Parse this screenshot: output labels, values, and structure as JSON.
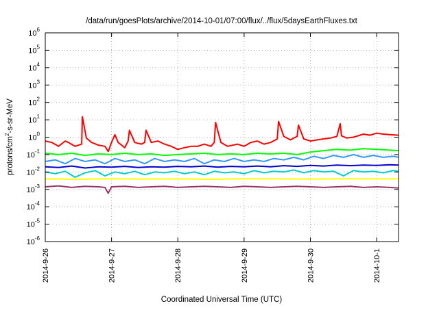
{
  "chart_data": {
    "type": "line",
    "title": "/data/run/goesPlots/archive/2014-10-01/07:00/flux/../flux/5daysEarthFluxes.txt",
    "xlabel": "Coordinated Universal Time (UTC)",
    "ylabel_parts": {
      "prefix": "protons/cm",
      "sup": "2",
      "suffix": "-s-sr-MeV"
    },
    "y_scale": "log",
    "ylim": [
      1e-06,
      1000000
    ],
    "xlim": [
      0,
      5.33
    ],
    "grid": true,
    "legend": "none",
    "x_ticks": [
      {
        "value": 0,
        "label": "2014-9-26"
      },
      {
        "value": 1,
        "label": "2014-9-27"
      },
      {
        "value": 2,
        "label": "2014-9-28"
      },
      {
        "value": 3,
        "label": "2014-9-29"
      },
      {
        "value": 4,
        "label": "2014-9-30"
      },
      {
        "value": 5,
        "label": "2014-10-1"
      }
    ],
    "y_ticks": [
      {
        "value": 1e-06,
        "base": "10",
        "exp": "-6"
      },
      {
        "value": 1e-05,
        "base": "10",
        "exp": "-5"
      },
      {
        "value": 0.0001,
        "base": "10",
        "exp": "-4"
      },
      {
        "value": 0.001,
        "base": "10",
        "exp": "-3"
      },
      {
        "value": 0.01,
        "base": "10",
        "exp": "-2"
      },
      {
        "value": 0.1,
        "base": "10",
        "exp": "-1"
      },
      {
        "value": 1,
        "base": "10",
        "exp": "0"
      },
      {
        "value": 10,
        "base": "10",
        "exp": "1"
      },
      {
        "value": 100,
        "base": "10",
        "exp": "2"
      },
      {
        "value": 1000,
        "base": "10",
        "exp": "3"
      },
      {
        "value": 10000,
        "base": "10",
        "exp": "4"
      },
      {
        "value": 100000,
        "base": "10",
        "exp": "5"
      },
      {
        "value": 1000000,
        "base": "10",
        "exp": "6"
      }
    ],
    "series": [
      {
        "color": "#ff0000",
        "x": [
          0.0,
          0.1,
          0.2,
          0.3,
          0.35,
          0.45,
          0.55,
          0.56,
          0.62,
          0.7,
          0.8,
          0.9,
          0.95,
          1.0,
          1.05,
          1.1,
          1.2,
          1.25,
          1.27,
          1.35,
          1.45,
          1.5,
          1.52,
          1.6,
          1.7,
          1.8,
          1.9,
          2.0,
          2.1,
          2.2,
          2.3,
          2.4,
          2.5,
          2.55,
          2.57,
          2.65,
          2.75,
          2.9,
          3.0,
          3.1,
          3.2,
          3.3,
          3.4,
          3.5,
          3.52,
          3.6,
          3.7,
          3.75,
          3.8,
          3.82,
          3.9,
          4.0,
          4.1,
          4.2,
          4.3,
          4.4,
          4.45,
          4.47,
          4.55,
          4.65,
          4.8,
          4.9,
          5.0,
          5.1,
          5.2,
          5.33
        ],
        "y": [
          0.6,
          0.5,
          0.3,
          0.6,
          0.5,
          0.3,
          0.4,
          15,
          0.9,
          0.5,
          0.35,
          0.3,
          0.15,
          0.5,
          1.4,
          0.5,
          0.25,
          0.6,
          2.5,
          0.5,
          0.4,
          0.5,
          2.5,
          0.5,
          0.6,
          0.4,
          0.3,
          0.2,
          0.25,
          0.3,
          0.3,
          0.4,
          0.3,
          0.5,
          7,
          0.5,
          0.3,
          0.4,
          0.3,
          0.5,
          0.6,
          0.4,
          0.5,
          0.8,
          8,
          1.1,
          0.7,
          0.9,
          1.1,
          5,
          0.8,
          0.6,
          0.7,
          0.8,
          0.9,
          1.1,
          6,
          1.2,
          0.9,
          1.0,
          1.5,
          1.3,
          1.7,
          1.5,
          1.4,
          1.3
        ]
      },
      {
        "color": "#00ff00",
        "x": [
          0.0,
          0.2,
          0.4,
          0.6,
          0.8,
          1.0,
          1.2,
          1.4,
          1.6,
          1.8,
          2.0,
          2.2,
          2.4,
          2.6,
          2.8,
          3.0,
          3.2,
          3.4,
          3.6,
          3.8,
          4.0,
          4.2,
          4.4,
          4.6,
          4.8,
          5.0,
          5.2,
          5.33
        ],
        "y": [
          0.12,
          0.1,
          0.12,
          0.09,
          0.11,
          0.1,
          0.12,
          0.1,
          0.11,
          0.09,
          0.1,
          0.11,
          0.12,
          0.1,
          0.11,
          0.1,
          0.12,
          0.11,
          0.12,
          0.1,
          0.14,
          0.17,
          0.2,
          0.18,
          0.22,
          0.2,
          0.18,
          0.17
        ]
      },
      {
        "color": "#3399ff",
        "x": [
          0.0,
          0.15,
          0.3,
          0.45,
          0.6,
          0.75,
          0.9,
          1.05,
          1.2,
          1.35,
          1.5,
          1.65,
          1.8,
          1.95,
          2.1,
          2.25,
          2.4,
          2.55,
          2.7,
          2.85,
          3.0,
          3.15,
          3.3,
          3.45,
          3.6,
          3.75,
          3.9,
          4.05,
          4.2,
          4.35,
          4.5,
          4.65,
          4.8,
          4.95,
          5.1,
          5.25,
          5.33
        ],
        "y": [
          0.04,
          0.05,
          0.03,
          0.06,
          0.04,
          0.05,
          0.03,
          0.06,
          0.04,
          0.05,
          0.03,
          0.06,
          0.04,
          0.05,
          0.04,
          0.06,
          0.03,
          0.05,
          0.04,
          0.06,
          0.04,
          0.05,
          0.04,
          0.06,
          0.05,
          0.07,
          0.05,
          0.08,
          0.06,
          0.09,
          0.07,
          0.1,
          0.07,
          0.09,
          0.07,
          0.08,
          0.07
        ]
      },
      {
        "color": "#0000cc",
        "x": [
          0.0,
          0.2,
          0.4,
          0.6,
          0.8,
          1.0,
          1.2,
          1.4,
          1.6,
          1.8,
          2.0,
          2.2,
          2.4,
          2.6,
          2.8,
          3.0,
          3.2,
          3.4,
          3.6,
          3.8,
          4.0,
          4.2,
          4.4,
          4.6,
          4.8,
          5.0,
          5.2,
          5.33
        ],
        "y": [
          0.02,
          0.018,
          0.022,
          0.017,
          0.02,
          0.019,
          0.021,
          0.018,
          0.02,
          0.019,
          0.021,
          0.02,
          0.022,
          0.019,
          0.021,
          0.02,
          0.022,
          0.02,
          0.023,
          0.021,
          0.024,
          0.022,
          0.025,
          0.023,
          0.025,
          0.024,
          0.026,
          0.025
        ]
      },
      {
        "color": "#00cccc",
        "x": [
          0.0,
          0.15,
          0.3,
          0.45,
          0.6,
          0.75,
          0.9,
          1.05,
          1.2,
          1.35,
          1.5,
          1.65,
          1.8,
          1.95,
          2.1,
          2.25,
          2.4,
          2.55,
          2.7,
          2.85,
          3.0,
          3.15,
          3.3,
          3.45,
          3.6,
          3.75,
          3.9,
          4.05,
          4.2,
          4.35,
          4.5,
          4.65,
          4.8,
          4.95,
          5.1,
          5.25,
          5.33
        ],
        "y": [
          0.01,
          0.008,
          0.011,
          0.005,
          0.009,
          0.012,
          0.006,
          0.01,
          0.008,
          0.011,
          0.007,
          0.01,
          0.009,
          0.011,
          0.008,
          0.01,
          0.007,
          0.011,
          0.009,
          0.01,
          0.008,
          0.012,
          0.009,
          0.011,
          0.01,
          0.013,
          0.009,
          0.012,
          0.01,
          0.011,
          0.006,
          0.012,
          0.01,
          0.011,
          0.009,
          0.012,
          0.011
        ]
      },
      {
        "color": "#ffff00",
        "x": [
          0.0,
          0.5,
          1.0,
          1.5,
          2.0,
          2.5,
          3.0,
          3.5,
          4.0,
          4.5,
          5.0,
          5.33
        ],
        "y": [
          0.004,
          0.0038,
          0.0041,
          0.0039,
          0.004,
          0.0038,
          0.0041,
          0.004,
          0.0039,
          0.0041,
          0.004,
          0.004
        ]
      },
      {
        "color": "#993366",
        "x": [
          0.0,
          0.2,
          0.4,
          0.6,
          0.8,
          0.9,
          0.95,
          1.0,
          1.2,
          1.4,
          1.6,
          1.8,
          2.0,
          2.2,
          2.4,
          2.6,
          2.8,
          3.0,
          3.2,
          3.4,
          3.6,
          3.8,
          4.0,
          4.2,
          4.4,
          4.6,
          4.8,
          5.0,
          5.2,
          5.33
        ],
        "y": [
          0.0014,
          0.0016,
          0.0013,
          0.0015,
          0.0014,
          0.0013,
          0.0006,
          0.0014,
          0.0015,
          0.0013,
          0.0014,
          0.0015,
          0.0013,
          0.0014,
          0.0015,
          0.0014,
          0.0013,
          0.0015,
          0.0014,
          0.0013,
          0.0014,
          0.0015,
          0.0014,
          0.0013,
          0.0014,
          0.0015,
          0.0013,
          0.0014,
          0.0013,
          0.0012
        ]
      }
    ]
  }
}
